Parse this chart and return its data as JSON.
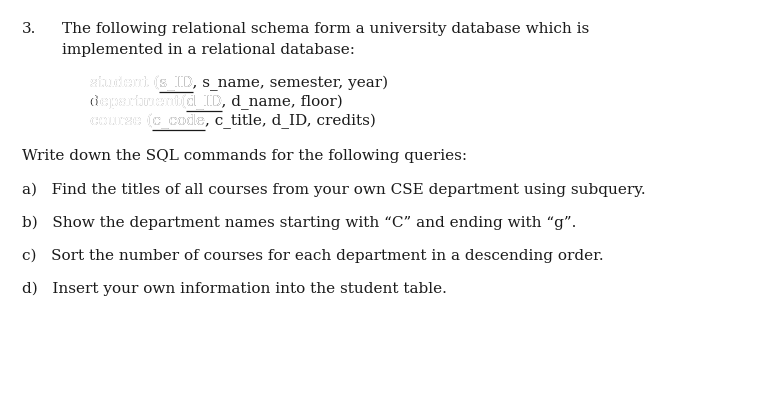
{
  "bg_color": "#ffffff",
  "text_color": "#1a1a1a",
  "fig_width": 7.79,
  "fig_height": 4.12,
  "dpi": 100,
  "font_family": "DejaVu Serif",
  "font_size": 11.0,
  "question_number": "3.",
  "heading_line1": "The following relational schema form a university database which is",
  "heading_line2": "implemented in a relational database:",
  "write_down": "Write down the SQL commands for the following queries:",
  "qa": "a)   Find the titles of all courses from your own CSE department using subquery.",
  "qb": "b)   Show the department names starting with “C” and ending with “g”.",
  "qc": "c)   Sort the number of courses for each department in a descending order.",
  "qd": "d)   Insert your own information into the student table."
}
